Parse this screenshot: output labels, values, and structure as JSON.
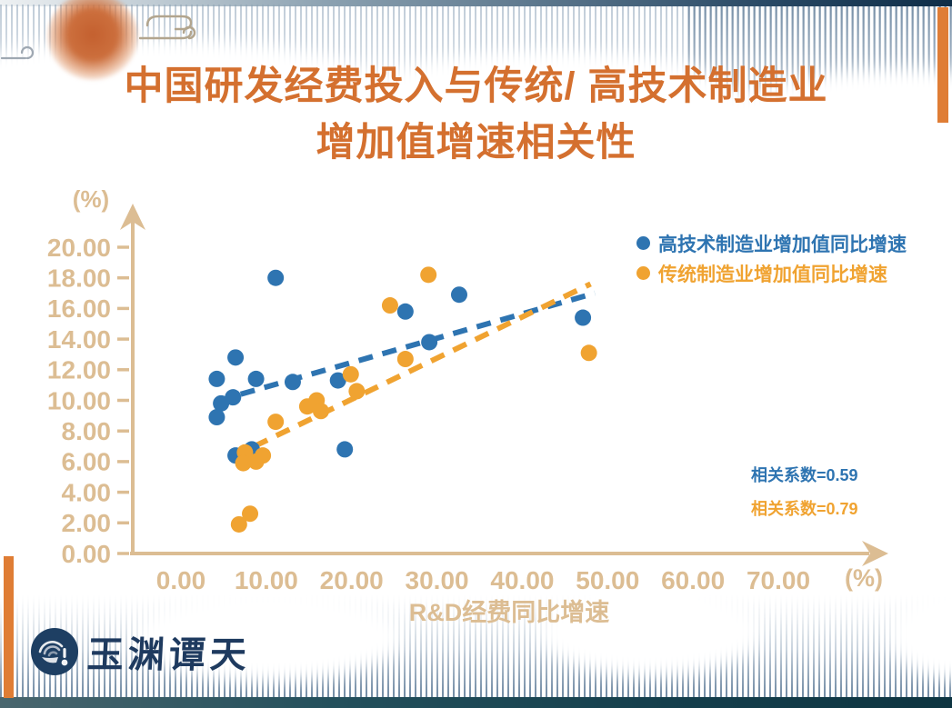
{
  "header": {
    "title_line1": "中国研发经费投入与传统/ 高技术制造业",
    "title_line2": "增加值增速相关性",
    "title_color": "#d4702f"
  },
  "branding": {
    "logo_text": "玉渊谭天",
    "logo_color": "#1e3a5f"
  },
  "chart_data": {
    "type": "scatter",
    "title": "中国研发经费投入与传统/高技术制造业增加值增速相关性",
    "xlabel": "R&D经费同比增速",
    "ylabel": "",
    "x_unit": "(%)",
    "y_unit": "(%)",
    "xlim": [
      0,
      70
    ],
    "ylim": [
      0,
      20
    ],
    "grid": false,
    "legend_position": "top-right",
    "axis_color": "#dcbd93",
    "x_ticks": [
      "0.00",
      "10.00",
      "20.00",
      "30.00",
      "40.00",
      "50.00",
      "60.00",
      "70.00"
    ],
    "y_ticks": [
      "20.00",
      "18.00",
      "16.00",
      "14.00",
      "12.00",
      "10.00",
      "8.00",
      "6.00",
      "4.00",
      "2.00",
      "0.00"
    ],
    "series": [
      {
        "name": "高技术制造业增加值同比增速",
        "color": "#2e74b1",
        "correlation_label": "相关系数=0.59",
        "points": [
          [
            11.1,
            18.0
          ],
          [
            32.6,
            16.9
          ],
          [
            26.3,
            15.8
          ],
          [
            29.1,
            13.8
          ],
          [
            47.1,
            15.4
          ],
          [
            6.4,
            12.8
          ],
          [
            4.2,
            11.4
          ],
          [
            8.8,
            11.4
          ],
          [
            13.1,
            11.2
          ],
          [
            18.4,
            11.3
          ],
          [
            6.1,
            10.2
          ],
          [
            4.7,
            9.8
          ],
          [
            4.2,
            8.9
          ],
          [
            6.4,
            6.4
          ],
          [
            8.3,
            6.8
          ],
          [
            19.2,
            6.8
          ]
        ],
        "trend": {
          "x1": 7.0,
          "y1": 10.4,
          "x2": 48.5,
          "y2": 17.0
        }
      },
      {
        "name": "传统制造业增加值同比增速",
        "color": "#f0a331",
        "correlation_label": "相关系数=0.79",
        "points": [
          [
            29.0,
            18.2
          ],
          [
            24.5,
            16.2
          ],
          [
            47.8,
            13.1
          ],
          [
            26.3,
            12.7
          ],
          [
            19.9,
            11.7
          ],
          [
            20.6,
            10.6
          ],
          [
            14.8,
            9.6
          ],
          [
            15.9,
            10.0
          ],
          [
            16.4,
            9.3
          ],
          [
            11.1,
            8.6
          ],
          [
            7.5,
            6.6
          ],
          [
            7.3,
            5.9
          ],
          [
            8.8,
            6.0
          ],
          [
            9.6,
            6.4
          ],
          [
            8.1,
            2.6
          ],
          [
            6.8,
            1.9
          ]
        ],
        "trend": {
          "x1": 6.0,
          "y1": 6.3,
          "x2": 48.0,
          "y2": 17.6
        }
      }
    ]
  }
}
